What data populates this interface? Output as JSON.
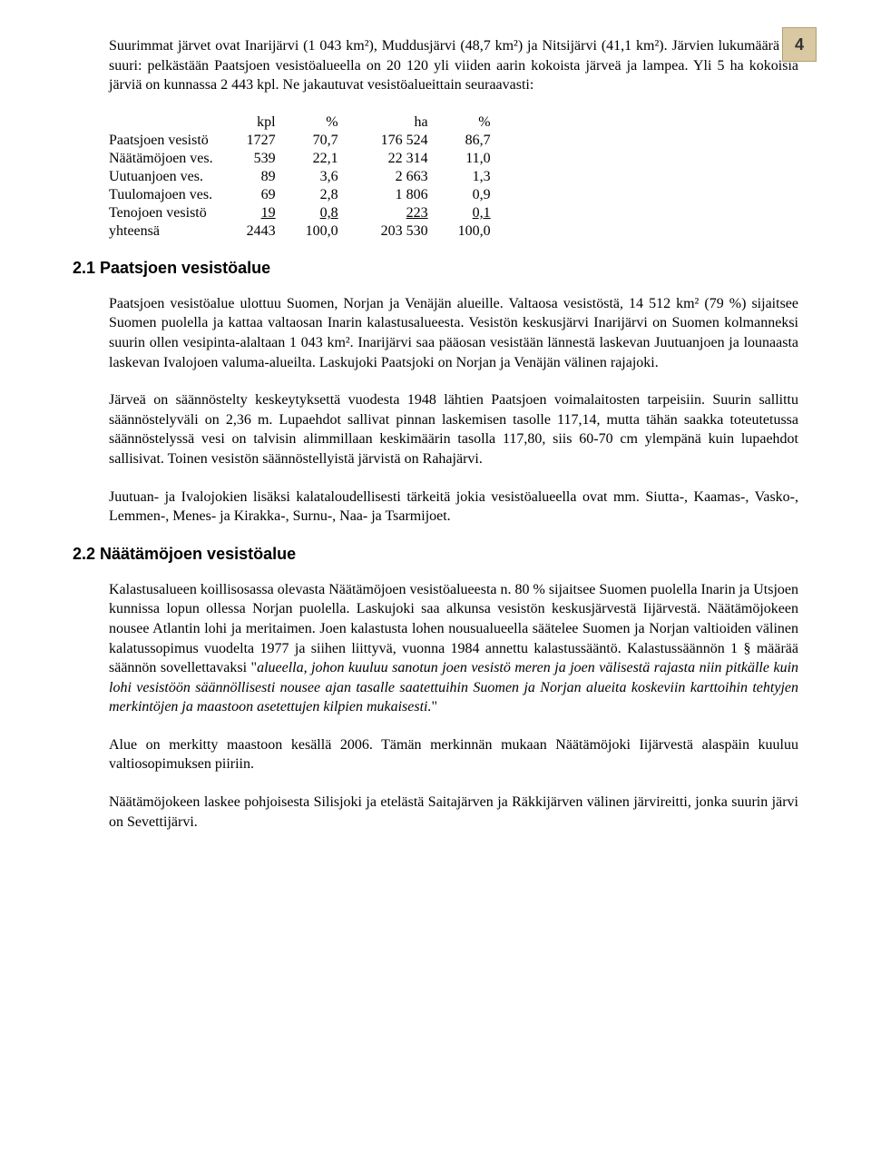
{
  "page_number": "4",
  "intro_para": "Suurimmat järvet ovat Inarijärvi (1 043 km²), Muddusjärvi (48,7 km²) ja Nitsijärvi (41,1 km²). Järvien lukumäärä on suuri: pelkästään Paatsjoen vesistöalueella on 20 120 yli viiden aarin kokoista järveä ja lampea. Yli 5 ha kokoisia järviä on kunnassa 2 443 kpl. Ne jakautuvat vesistöalueittain seuraavasti:",
  "table": {
    "header": {
      "name": "",
      "kpl": "kpl",
      "pct1": "%",
      "ha": "ha",
      "pct2": "%"
    },
    "rows": [
      {
        "name": "Paatsjoen vesistö",
        "kpl": "1727",
        "pct1": "70,7",
        "ha": "176 524",
        "pct2": "86,7"
      },
      {
        "name": "Näätämöjoen ves.",
        "kpl": "539",
        "pct1": "22,1",
        "ha": "22 314",
        "pct2": "11,0"
      },
      {
        "name": "Uutuanjoen ves.",
        "kpl": "89",
        "pct1": "3,6",
        "ha": "2 663",
        "pct2": "1,3"
      },
      {
        "name": "Tuulomajoen ves.",
        "kpl": "69",
        "pct1": "2,8",
        "ha": "1 806",
        "pct2": "0,9"
      }
    ],
    "teno": {
      "name": "Tenojoen vesistö",
      "kpl": "19",
      "pct1": "0,8",
      "ha": "223",
      "pct2": "0,1"
    },
    "total": {
      "name": "yhteensä",
      "kpl": "2443",
      "pct1": "100,0",
      "ha": "203 530",
      "pct2": "100,0"
    }
  },
  "s21": {
    "heading": "2.1 Paatsjoen vesistöalue",
    "p1": "Paatsjoen vesistöalue ulottuu Suomen, Norjan ja Venäjän alueille. Valtaosa vesistöstä, 14 512 km² (79 %) sijaitsee Suomen puolella ja kattaa valtaosan Inarin kalastusalueesta. Vesistön keskusjärvi Inarijärvi on Suomen kolmanneksi suurin ollen vesipinta-alaltaan 1 043 km². Inarijärvi saa pääosan vesistään lännestä laskevan Juutuanjoen ja lounaasta laskevan Ivalojoen valuma-alueilta. Laskujoki Paatsjoki on Norjan ja Venäjän välinen rajajoki.",
    "p2": "Järveä on säännöstelty keskeytyksettä vuodesta 1948 lähtien Paatsjoen voimalaitosten tarpeisiin. Suurin sallittu säännöstelyväli on 2,36 m. Lupaehdot sallivat pinnan laskemisen tasolle 117,14, mutta tähän saakka toteutetussa säännöstelyssä vesi on talvisin alimmillaan keskimäärin tasolla 117,80, siis 60-70 cm ylempänä kuin lupaehdot sallisivat. Toinen vesistön säännöstellyistä järvistä on Rahajärvi.",
    "p3": "Juutuan- ja Ivalojokien lisäksi kalataloudellisesti tärkeitä jokia vesistöalueella ovat mm. Siutta-, Kaamas-, Vasko-, Lemmen-, Menes- ja Kirakka-, Surnu-, Naa- ja Tsarmijoet."
  },
  "s22": {
    "heading": "2.2 Näätämöjoen vesistöalue",
    "p1a": "Kalastusalueen koillisosassa olevasta Näätämöjoen vesistöalueesta n. 80 % sijaitsee Suomen puolella Inarin ja Utsjoen kunnissa lopun ollessa Norjan puolella. Laskujoki saa alkunsa vesistön keskusjärvestä Iijärvestä. Näätämöjokeen nousee Atlantin lohi ja meritaimen. Joen kalastusta lohen nousualueella säätelee Suomen ja Norjan valtioiden välinen kalatussopimus vuodelta 1977 ja siihen liittyvä, vuonna 1984 annettu kalastussääntö. Kalastussäännön 1 § määrää säännön sovellettavaksi \"",
    "p1_italic": "alueella, johon kuuluu sanotun joen vesistö meren ja joen välisestä rajasta niin pitkälle kuin lohi vesistöön säännöllisesti nousee ajan tasalle saatettuihin Suomen ja Norjan alueita koskeviin karttoihin tehtyjen merkintöjen ja maastoon asetettujen kilpien mukaisesti.",
    "p1b": "\"",
    "p2": "Alue on merkitty maastoon kesällä 2006. Tämän merkinnän mukaan Näätämöjoki Iijärvestä alaspäin kuuluu valtiosopimuksen piiriin.",
    "p3": "Näätämöjokeen laskee pohjoisesta Silisjoki ja etelästä Saitajärven ja Räkkijärven välinen järvireitti, jonka suurin järvi on Sevettijärvi."
  }
}
